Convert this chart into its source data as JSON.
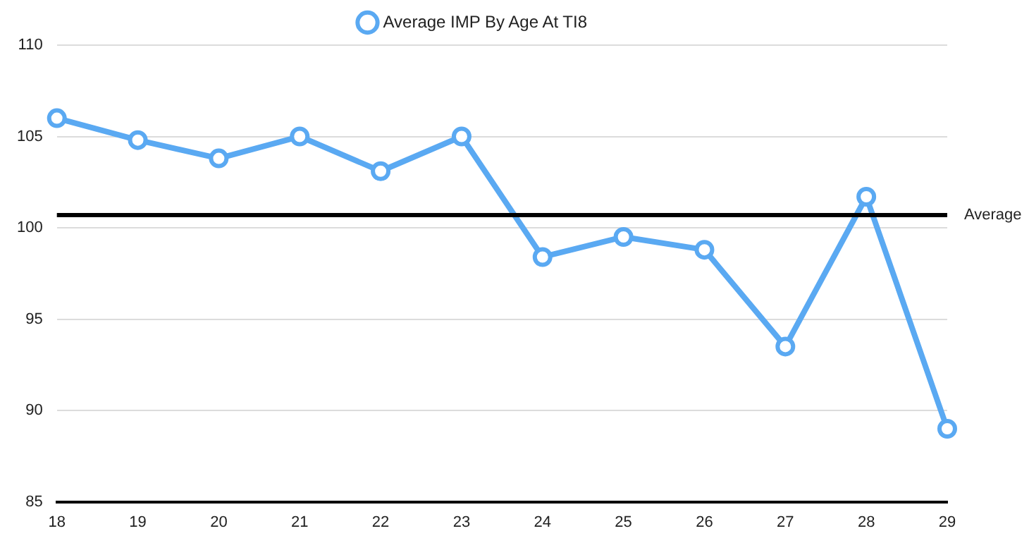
{
  "chart_data": {
    "type": "line",
    "categories": [
      "18",
      "19",
      "20",
      "21",
      "22",
      "23",
      "24",
      "25",
      "26",
      "27",
      "28",
      "29"
    ],
    "series": [
      {
        "name": "Average IMP By Age At TI8",
        "color": "#5aa9f2",
        "values": [
          106.0,
          104.8,
          103.8,
          105.0,
          103.1,
          105.0,
          98.4,
          99.5,
          98.8,
          93.5,
          101.7,
          89.0
        ]
      }
    ],
    "ylim": [
      85,
      110
    ],
    "yticks": [
      85,
      90,
      95,
      100,
      105,
      110
    ],
    "grid": "y",
    "legend": "top",
    "marker": "circle",
    "line_style": "solid",
    "ref_lines": [
      {
        "axis": "y",
        "value": 100.7,
        "label": "Average",
        "color": "#000000"
      }
    ]
  }
}
